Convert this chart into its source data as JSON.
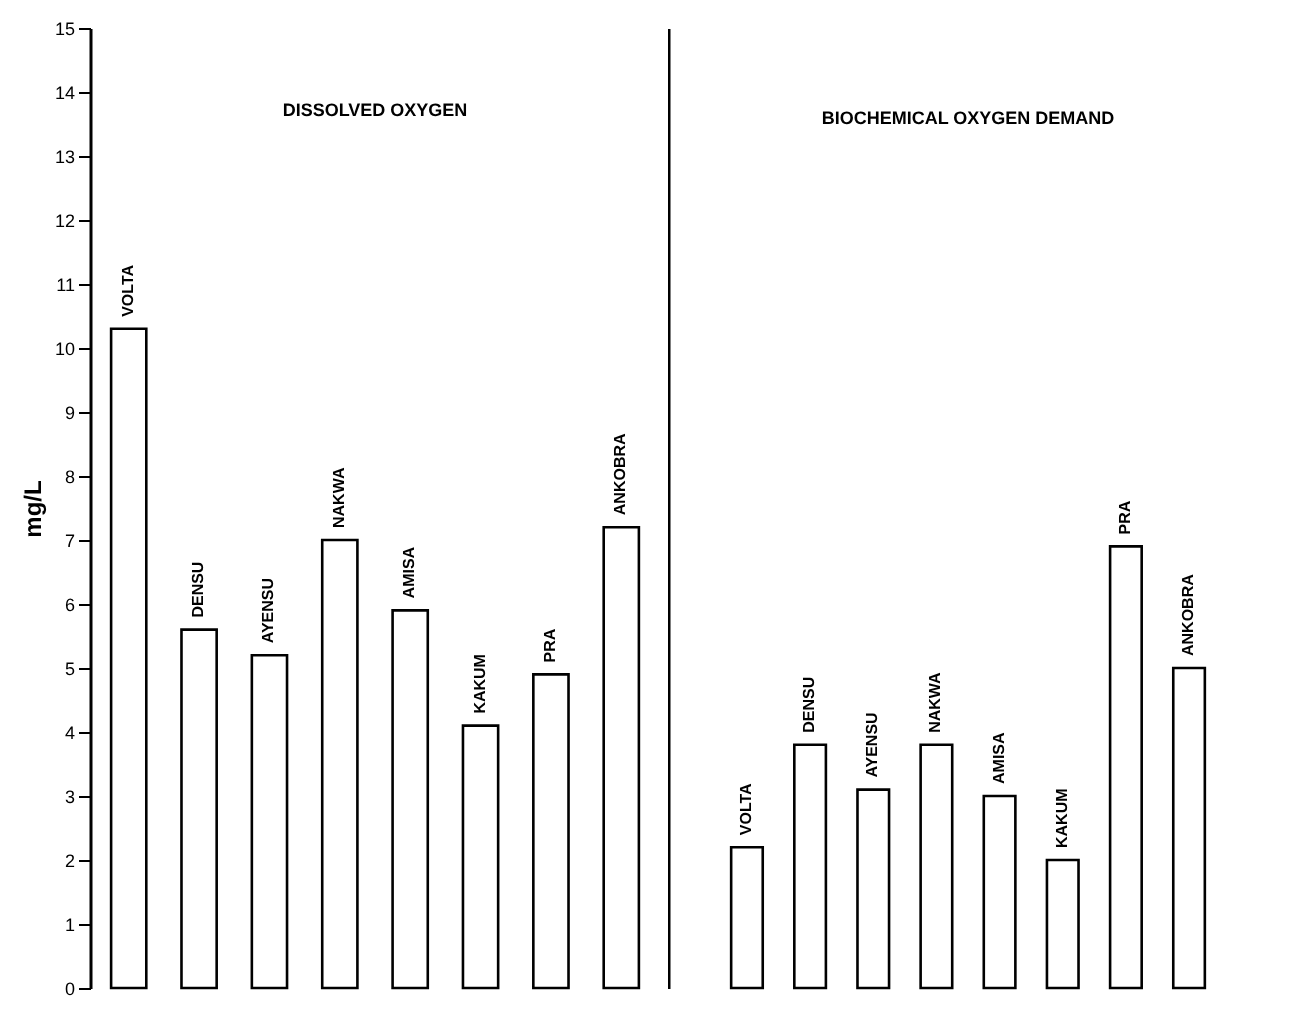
{
  "chart_data": [
    {
      "type": "bar",
      "title": "DISSOLVED OXYGEN",
      "ylabel": "mg/L",
      "categories": [
        "VOLTA",
        "DENSU",
        "AYENSU",
        "NAKWA",
        "AMISA",
        "KAKUM",
        "PRA",
        "ANKOBRA"
      ],
      "values": [
        10.3,
        5.6,
        5.2,
        7.0,
        5.9,
        4.1,
        4.9,
        7.2
      ],
      "color": "#ffffff",
      "ylim": [
        0,
        15
      ],
      "yticks": [
        0,
        1,
        2,
        3,
        4,
        5,
        6,
        7,
        8,
        9,
        10,
        11,
        12,
        13,
        14,
        15
      ],
      "grid": false,
      "legend": false
    },
    {
      "type": "bar",
      "title": "BIOCHEMICAL OXYGEN DEMAND",
      "categories": [
        "VOLTA",
        "DENSU",
        "AYENSU",
        "NAKWA",
        "AMISA",
        "KAKUM",
        "PRA",
        "ANKOBRA"
      ],
      "values": [
        2.2,
        3.8,
        3.1,
        3.8,
        3.0,
        2.0,
        6.9,
        5.0
      ],
      "color": "#ffffff",
      "ylim": [
        0,
        15
      ],
      "tick_labels": "x",
      "grid": false,
      "legend": false
    }
  ]
}
